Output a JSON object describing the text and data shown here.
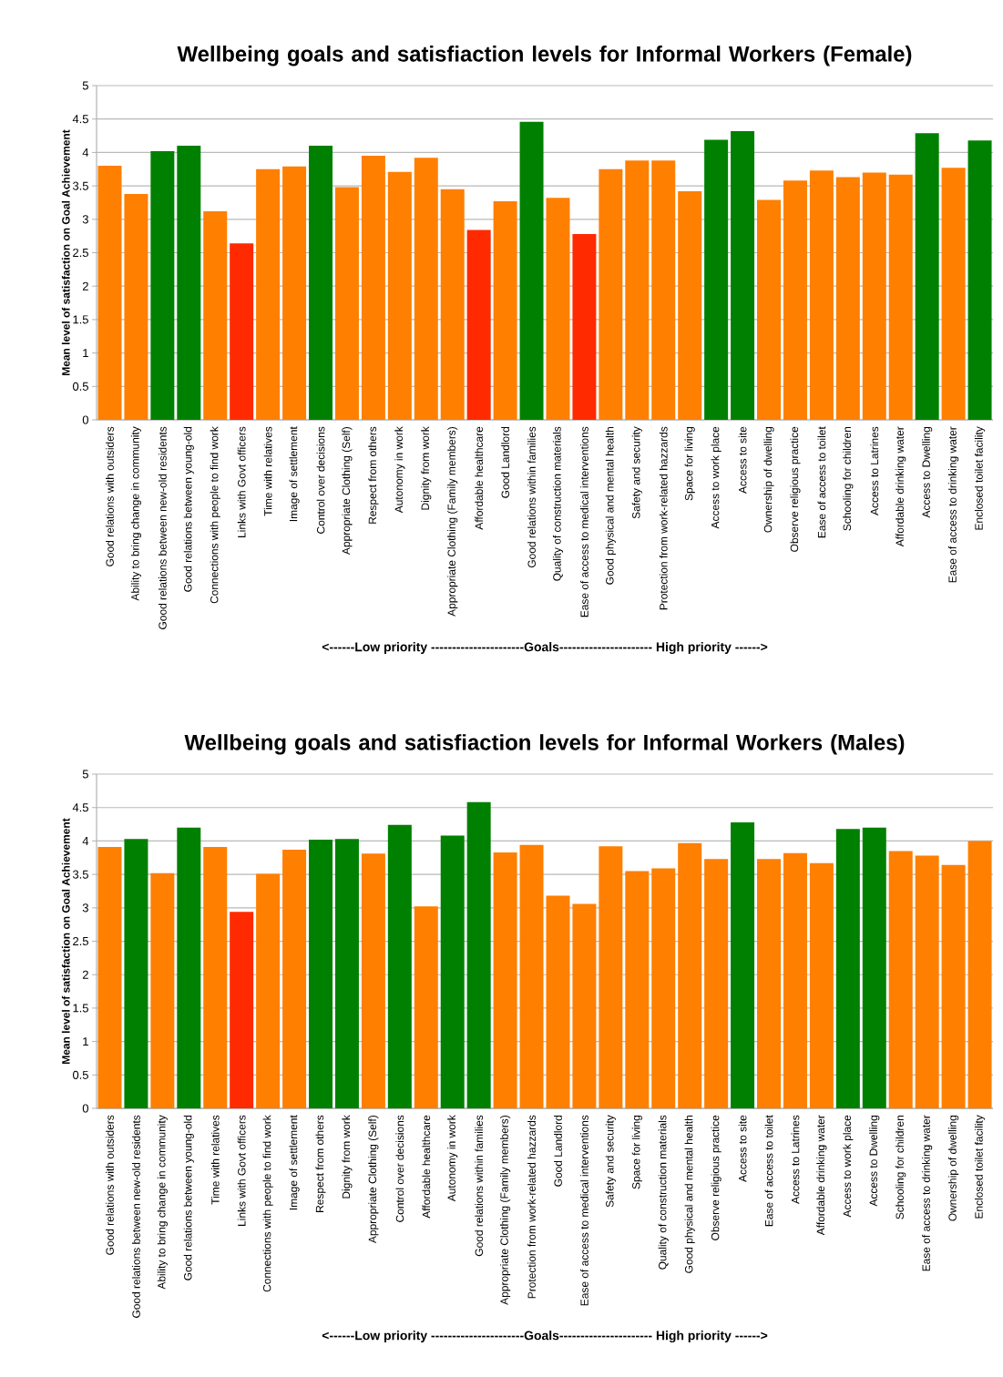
{
  "chart_data": [
    {
      "type": "bar",
      "title": "Wellbeing goals and satisfiaction levels for Informal Workers (Female)",
      "xlabel": "<------Low priority ----------------------Goals---------------------- High priority ------>",
      "ylabel": "Mean level of satisfaction on Goal Achievement",
      "categories": [
        "Good relations with outsiders",
        "Ability to bring change in community",
        "Good relations between new-old residents",
        "Good relations between young-old",
        "Connections with people to find work",
        "Links with Govt officers",
        "Time with relatives",
        "Image of settlement",
        "Control over decisions",
        "Appropriate Clothing (Self)",
        "Respect from others",
        "Autonomy in work",
        "Dignity from work",
        "Appropriate Clothing (Family members)",
        "Affordable healthcare",
        "Good Landlord",
        "Good relations within families",
        "Quality of construction materials",
        "Ease of access to medical interventions",
        "Good physical and mental health",
        "Safety and security",
        "Protection from work-related hazzards",
        "Space for living",
        "Access to work place",
        "Access to site",
        "Ownership of dwelling",
        "Observe religious practice",
        "Ease of access to toilet",
        "Schooling for children",
        "Access to Latrines",
        "Affordable drinking water",
        "Access to Dwelling",
        "Ease of access to drinking water",
        "Enclosed toilet facility"
      ],
      "values": [
        3.8,
        3.38,
        4.02,
        4.1,
        3.12,
        2.64,
        3.75,
        3.79,
        4.1,
        3.48,
        3.95,
        3.71,
        3.92,
        3.45,
        2.84,
        3.27,
        4.46,
        3.32,
        2.78,
        3.75,
        3.88,
        3.88,
        3.42,
        4.19,
        4.32,
        3.29,
        3.58,
        3.73,
        3.63,
        3.7,
        3.67,
        4.29,
        3.77,
        4.18
      ],
      "colors": [
        "#ff7f00",
        "#ff7f00",
        "#008000",
        "#008000",
        "#ff7f00",
        "#ff2a00",
        "#ff7f00",
        "#ff7f00",
        "#008000",
        "#ff7f00",
        "#ff7f00",
        "#ff7f00",
        "#ff7f00",
        "#ff7f00",
        "#ff2a00",
        "#ff7f00",
        "#008000",
        "#ff7f00",
        "#ff2a00",
        "#ff7f00",
        "#ff7f00",
        "#ff7f00",
        "#ff7f00",
        "#008000",
        "#008000",
        "#ff7f00",
        "#ff7f00",
        "#ff7f00",
        "#ff7f00",
        "#ff7f00",
        "#ff7f00",
        "#008000",
        "#ff7f00",
        "#008000"
      ],
      "ylim": [
        0,
        5
      ],
      "yticks": [
        0,
        0.5,
        1,
        1.5,
        2,
        2.5,
        3,
        3.5,
        4,
        4.5,
        5
      ],
      "grid": "y"
    },
    {
      "type": "bar",
      "title": "Wellbeing goals and satisfiaction levels for Informal Workers (Males)",
      "xlabel": "<------Low priority ----------------------Goals---------------------- High priority ------>",
      "ylabel": "Mean level of satisfaction on Goal Achievement",
      "categories": [
        "Good relations with outsiders",
        "Good relations between new-old residents",
        "Ability to bring change in community",
        "Good relations between young-old",
        "Time with relatives",
        "Links with Govt officers",
        "Connections with people to find work",
        "Image of settlement",
        "Respect from others",
        "Dignity from work",
        "Appropriate Clothing (Self)",
        "Control over decisions",
        "Affordable healthcare",
        "Autonomy in work",
        "Good relations within families",
        "Appropriate Clothing (Family members)",
        "Protection from work-related hazzards",
        "Good Landlord",
        "Ease of access to medical interventions",
        "Safety and security",
        "Space for living",
        "Quality of construction materials",
        "Good physical and mental health",
        "Observe religious practice",
        "Access to site",
        "Ease of access to toilet",
        "Access to Latrines",
        "Affordable drinking water",
        "Access to work place",
        "Access to Dwelling",
        "Schooling for children",
        "Ease of access to drinking water",
        "Ownership of dwelling",
        "Enclosed toilet facility"
      ],
      "values": [
        3.91,
        4.03,
        3.52,
        4.2,
        3.91,
        2.94,
        3.51,
        3.87,
        4.02,
        4.03,
        3.81,
        4.24,
        3.02,
        4.08,
        4.58,
        3.83,
        3.94,
        3.18,
        3.06,
        3.92,
        3.55,
        3.59,
        3.97,
        3.73,
        4.28,
        3.73,
        3.82,
        3.67,
        4.18,
        4.2,
        3.85,
        3.78,
        3.64,
        4.0
      ],
      "colors": [
        "#ff7f00",
        "#008000",
        "#ff7f00",
        "#008000",
        "#ff7f00",
        "#ff2a00",
        "#ff7f00",
        "#ff7f00",
        "#008000",
        "#008000",
        "#ff7f00",
        "#008000",
        "#ff7f00",
        "#008000",
        "#008000",
        "#ff7f00",
        "#ff7f00",
        "#ff7f00",
        "#ff7f00",
        "#ff7f00",
        "#ff7f00",
        "#ff7f00",
        "#ff7f00",
        "#ff7f00",
        "#008000",
        "#ff7f00",
        "#ff7f00",
        "#ff7f00",
        "#008000",
        "#008000",
        "#ff7f00",
        "#ff7f00",
        "#ff7f00",
        "#ff7f00"
      ],
      "ylim": [
        0,
        5
      ],
      "yticks": [
        0,
        0.5,
        1,
        1.5,
        2,
        2.5,
        3,
        3.5,
        4,
        4.5,
        5
      ],
      "grid": "y"
    }
  ]
}
